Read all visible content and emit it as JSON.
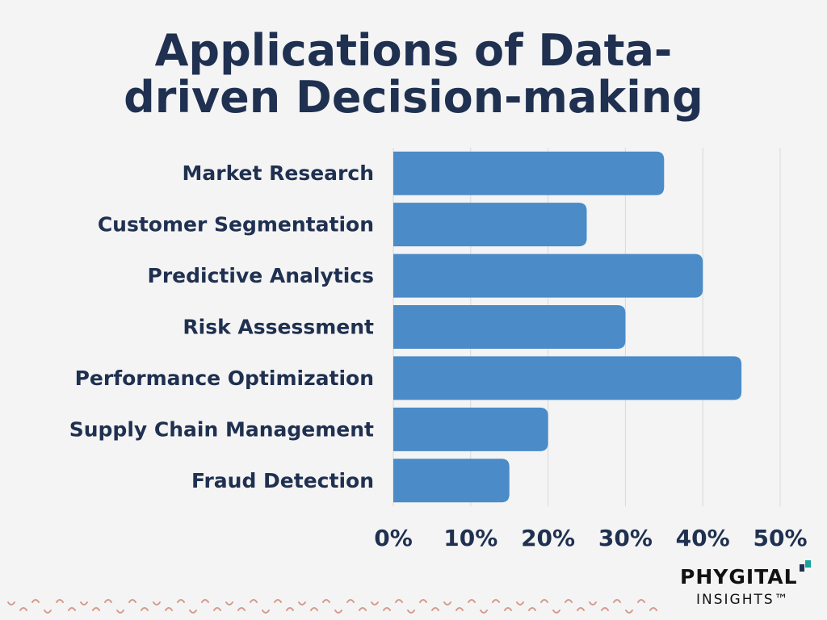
{
  "title_line1": "Applications of Data-",
  "title_line2": "driven Decision-making",
  "colors": {
    "bar": "#4a8bc8",
    "text": "#1f3050",
    "grid": "#d9d9d9",
    "background": "#f4f4f4",
    "logo_mark_teal": "#1aa39a",
    "logo_mark_navy": "#1f3050",
    "pattern": "#d59a8a"
  },
  "chart_data": {
    "type": "bar",
    "orientation": "horizontal",
    "categories": [
      "Market Research",
      "Customer Segmentation",
      "Predictive Analytics",
      "Risk Assessment",
      "Performance Optimization",
      "Supply Chain Management",
      "Fraud Detection"
    ],
    "values": [
      35,
      25,
      40,
      30,
      45,
      20,
      15
    ],
    "unit": "%",
    "xlim": [
      0,
      50
    ],
    "xticks": [
      0,
      10,
      20,
      30,
      40,
      50
    ],
    "xtick_labels": [
      "0%",
      "10%",
      "20%",
      "30%",
      "40%",
      "50%"
    ],
    "grid": true
  },
  "logo": {
    "name": "PHYGITAL",
    "subtitle": "INSIGHTS™"
  }
}
